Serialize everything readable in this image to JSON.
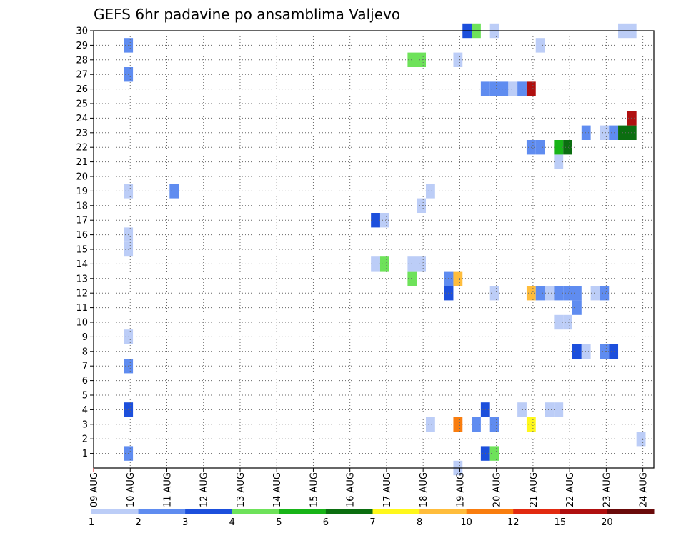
{
  "chart_data": {
    "type": "heatmap",
    "title": "GEFS 6hr padavine po ansamblima Valjevo",
    "xlabel": "",
    "ylabel": "",
    "x_tick_labels": [
      "09 AUG",
      "10 AUG",
      "11 AUG",
      "12 AUG",
      "13 AUG",
      "14 AUG",
      "15 AUG",
      "16 AUG",
      "17 AUG",
      "18 AUG",
      "19 AUG",
      "20 AUG",
      "21 AUG",
      "22 AUG",
      "23 AUG",
      "24 AUG"
    ],
    "y_tick_labels": [
      "1",
      "2",
      "3",
      "4",
      "5",
      "6",
      "7",
      "8",
      "9",
      "10",
      "11",
      "12",
      "13",
      "14",
      "15",
      "16",
      "17",
      "18",
      "19",
      "20",
      "21",
      "22",
      "23",
      "24",
      "25",
      "26",
      "27",
      "28",
      "29",
      "30"
    ],
    "x_range_days_from_09aug": [
      0,
      15.3
    ],
    "y_range": [
      0,
      30
    ],
    "grid": true,
    "colorbar": {
      "labels": [
        "1",
        "2",
        "3",
        "4",
        "5",
        "6",
        "7",
        "8",
        "10",
        "12",
        "15",
        "20"
      ],
      "colors": [
        "#bccdf7",
        "#5f8cf0",
        "#1c4fdc",
        "#6ee25a",
        "#18b418",
        "#0b6e10",
        "#fff81b",
        "#ffbd3c",
        "#f97d0e",
        "#e22a10",
        "#b00f0f",
        "#6a0a0a"
      ]
    },
    "cells": [
      {
        "t": 0.95,
        "m": 1,
        "c": 1
      },
      {
        "t": 0.95,
        "m": 4,
        "c": 2
      },
      {
        "t": 0.95,
        "m": 7,
        "c": 1
      },
      {
        "t": 0.95,
        "m": 9,
        "c": 0
      },
      {
        "t": 0.95,
        "m": 15,
        "c": 0
      },
      {
        "t": 0.95,
        "m": 16,
        "c": 0
      },
      {
        "t": 0.95,
        "m": 19,
        "c": 0
      },
      {
        "t": 0.95,
        "m": 27,
        "c": 1
      },
      {
        "t": 0.95,
        "m": 29,
        "c": 1
      },
      {
        "t": 2.2,
        "m": 19,
        "c": 1
      },
      {
        "t": 7.7,
        "m": 14,
        "c": 0
      },
      {
        "t": 7.7,
        "m": 17,
        "c": 2
      },
      {
        "t": 7.95,
        "m": 14,
        "c": 3
      },
      {
        "t": 7.95,
        "m": 17,
        "c": 0
      },
      {
        "t": 8.7,
        "m": 13,
        "c": 3
      },
      {
        "t": 8.7,
        "m": 14,
        "c": 0
      },
      {
        "t": 8.7,
        "m": 28,
        "c": 3
      },
      {
        "t": 8.95,
        "m": 14,
        "c": 0
      },
      {
        "t": 8.95,
        "m": 28,
        "c": 3
      },
      {
        "t": 8.95,
        "m": 18,
        "c": 0
      },
      {
        "t": 9.2,
        "m": 19,
        "c": 0
      },
      {
        "t": 9.2,
        "m": 3,
        "c": 0
      },
      {
        "t": 9.7,
        "m": 12,
        "c": 2
      },
      {
        "t": 9.7,
        "m": 13,
        "c": 1
      },
      {
        "t": 9.95,
        "m": 13,
        "c": 7
      },
      {
        "t": 9.95,
        "m": 3,
        "c": 8
      },
      {
        "t": 9.95,
        "m": 28,
        "c": 0
      },
      {
        "t": 9.95,
        "m": 0,
        "c": 0
      },
      {
        "t": 10.2,
        "m": 30,
        "c": 2
      },
      {
        "t": 10.45,
        "m": 30,
        "c": 3
      },
      {
        "t": 10.45,
        "m": 3,
        "c": 1
      },
      {
        "t": 10.7,
        "m": 1,
        "c": 2
      },
      {
        "t": 10.7,
        "m": 4,
        "c": 2
      },
      {
        "t": 10.7,
        "m": 26,
        "c": 1
      },
      {
        "t": 10.95,
        "m": 1,
        "c": 3
      },
      {
        "t": 10.95,
        "m": 3,
        "c": 1
      },
      {
        "t": 10.95,
        "m": 12,
        "c": 0
      },
      {
        "t": 10.95,
        "m": 26,
        "c": 1
      },
      {
        "t": 10.95,
        "m": 30,
        "c": 0
      },
      {
        "t": 11.2,
        "m": 26,
        "c": 1
      },
      {
        "t": 11.45,
        "m": 26,
        "c": 0
      },
      {
        "t": 11.7,
        "m": 4,
        "c": 0
      },
      {
        "t": 11.7,
        "m": 26,
        "c": 1
      },
      {
        "t": 11.95,
        "m": 3,
        "c": 6
      },
      {
        "t": 11.95,
        "m": 12,
        "c": 7
      },
      {
        "t": 11.95,
        "m": 22,
        "c": 1
      },
      {
        "t": 11.95,
        "m": 26,
        "c": 10
      },
      {
        "t": 12.2,
        "m": 12,
        "c": 1
      },
      {
        "t": 12.2,
        "m": 22,
        "c": 1
      },
      {
        "t": 12.2,
        "m": 29,
        "c": 0
      },
      {
        "t": 12.45,
        "m": 4,
        "c": 0
      },
      {
        "t": 12.45,
        "m": 12,
        "c": 0
      },
      {
        "t": 12.7,
        "m": 4,
        "c": 0
      },
      {
        "t": 12.7,
        "m": 10,
        "c": 0
      },
      {
        "t": 12.7,
        "m": 12,
        "c": 1
      },
      {
        "t": 12.7,
        "m": 21,
        "c": 0
      },
      {
        "t": 12.7,
        "m": 22,
        "c": 4
      },
      {
        "t": 12.95,
        "m": 10,
        "c": 0
      },
      {
        "t": 12.95,
        "m": 12,
        "c": 1
      },
      {
        "t": 12.95,
        "m": 22,
        "c": 5
      },
      {
        "t": 13.2,
        "m": 8,
        "c": 2
      },
      {
        "t": 13.2,
        "m": 11,
        "c": 1
      },
      {
        "t": 13.2,
        "m": 12,
        "c": 1
      },
      {
        "t": 13.45,
        "m": 8,
        "c": 0
      },
      {
        "t": 13.45,
        "m": 23,
        "c": 1
      },
      {
        "t": 13.7,
        "m": 12,
        "c": 0
      },
      {
        "t": 13.95,
        "m": 8,
        "c": 1
      },
      {
        "t": 13.95,
        "m": 12,
        "c": 1
      },
      {
        "t": 13.95,
        "m": 23,
        "c": 0
      },
      {
        "t": 14.2,
        "m": 8,
        "c": 2
      },
      {
        "t": 14.2,
        "m": 23,
        "c": 1
      },
      {
        "t": 14.45,
        "m": 23,
        "c": 5
      },
      {
        "t": 14.45,
        "m": 30,
        "c": 0
      },
      {
        "t": 14.7,
        "m": 23,
        "c": 5
      },
      {
        "t": 14.7,
        "m": 24,
        "c": 10
      },
      {
        "t": 14.7,
        "m": 30,
        "c": 0
      },
      {
        "t": 14.95,
        "m": 2,
        "c": 0
      }
    ]
  }
}
